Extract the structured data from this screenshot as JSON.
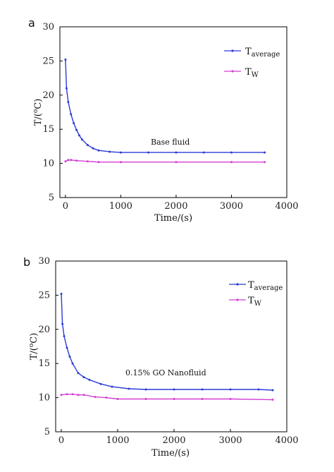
{
  "chart_data": [
    {
      "panel_label": "a",
      "type": "line",
      "xlabel": "Time/(s)",
      "ylabel_main": "T/(",
      "ylabel_sup": "o",
      "ylabel_end": "C)",
      "xlim": [
        -100,
        4000
      ],
      "ylim": [
        5,
        30
      ],
      "xticks": [
        "0",
        "1000",
        "2000",
        "3000",
        "4000"
      ],
      "yticks": [
        "5",
        "10",
        "15",
        "20",
        "25",
        "30"
      ],
      "annotation": "Base fluid",
      "legend": {
        "position": "top-right"
      },
      "series": [
        {
          "name_main": "T",
          "name_sub": "average",
          "color": "#2b3bd6",
          "points": [
            [
              0,
              25.2
            ],
            [
              20,
              21.0
            ],
            [
              50,
              19.0
            ],
            [
              100,
              17.2
            ],
            [
              150,
              15.9
            ],
            [
              200,
              14.9
            ],
            [
              250,
              14.1
            ],
            [
              300,
              13.5
            ],
            [
              400,
              12.7
            ],
            [
              500,
              12.2
            ],
            [
              600,
              11.9
            ],
            [
              800,
              11.7
            ],
            [
              1000,
              11.6
            ],
            [
              1500,
              11.6
            ],
            [
              2000,
              11.6
            ],
            [
              2500,
              11.6
            ],
            [
              3000,
              11.6
            ],
            [
              3600,
              11.6
            ]
          ]
        },
        {
          "name_main": "T",
          "name_sub": "W",
          "color": "#d43fd4",
          "points": [
            [
              0,
              10.3
            ],
            [
              50,
              10.5
            ],
            [
              100,
              10.5
            ],
            [
              200,
              10.4
            ],
            [
              400,
              10.3
            ],
            [
              600,
              10.2
            ],
            [
              1000,
              10.2
            ],
            [
              2000,
              10.2
            ],
            [
              3000,
              10.2
            ],
            [
              3600,
              10.2
            ]
          ]
        }
      ]
    },
    {
      "panel_label": "b",
      "type": "line",
      "xlabel": "Time/(s)",
      "ylabel_main": "T/(",
      "ylabel_sup": "o",
      "ylabel_end": "C)",
      "xlim": [
        -100,
        4000
      ],
      "ylim": [
        5,
        30
      ],
      "xticks": [
        "0",
        "1000",
        "2000",
        "3000",
        "4000"
      ],
      "yticks": [
        "5",
        "10",
        "15",
        "20",
        "25",
        "30"
      ],
      "annotation": "0.15% GO Nanofluid",
      "legend": {
        "position": "top-right"
      },
      "series": [
        {
          "name_main": "T",
          "name_sub": "average",
          "color": "#2b3bd6",
          "points": [
            [
              0,
              25.2
            ],
            [
              20,
              20.8
            ],
            [
              50,
              19.0
            ],
            [
              100,
              17.3
            ],
            [
              150,
              16.0
            ],
            [
              200,
              15.0
            ],
            [
              300,
              13.6
            ],
            [
              400,
              13.0
            ],
            [
              500,
              12.6
            ],
            [
              700,
              12.0
            ],
            [
              900,
              11.6
            ],
            [
              1200,
              11.3
            ],
            [
              1500,
              11.2
            ],
            [
              2000,
              11.2
            ],
            [
              2500,
              11.2
            ],
            [
              3000,
              11.2
            ],
            [
              3500,
              11.2
            ],
            [
              3750,
              11.1
            ]
          ]
        },
        {
          "name_main": "T",
          "name_sub": "W",
          "color": "#d43fd4",
          "points": [
            [
              0,
              10.4
            ],
            [
              100,
              10.5
            ],
            [
              200,
              10.5
            ],
            [
              300,
              10.4
            ],
            [
              400,
              10.4
            ],
            [
              600,
              10.1
            ],
            [
              800,
              10.0
            ],
            [
              1000,
              9.8
            ],
            [
              1500,
              9.8
            ],
            [
              2000,
              9.8
            ],
            [
              2500,
              9.8
            ],
            [
              3000,
              9.8
            ],
            [
              3750,
              9.7
            ]
          ]
        }
      ]
    }
  ]
}
